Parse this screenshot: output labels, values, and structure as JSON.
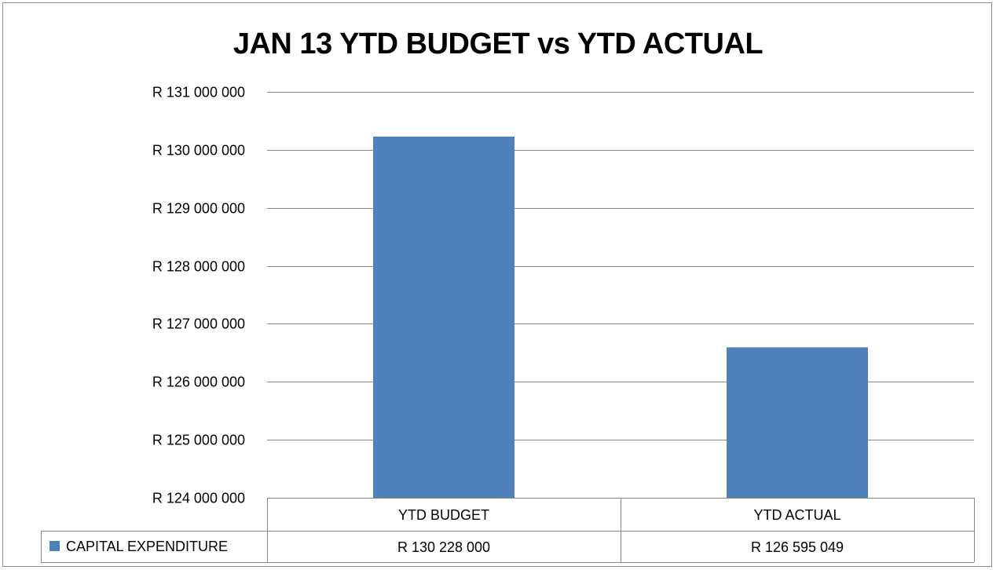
{
  "chart_data": {
    "type": "bar",
    "title": "JAN 13 YTD BUDGET vs YTD ACTUAL",
    "categories": [
      "YTD BUDGET",
      "YTD ACTUAL"
    ],
    "series": [
      {
        "name": "CAPITAL EXPENDITURE",
        "values": [
          130228000,
          126595049
        ],
        "display_values": [
          "R 130 228 000",
          "R 126 595 049"
        ],
        "color": "#4f81bd"
      }
    ],
    "ylim": [
      124000000,
      131000000
    ],
    "yticks": [
      124000000,
      125000000,
      126000000,
      127000000,
      128000000,
      129000000,
      130000000,
      131000000
    ],
    "ytick_labels": [
      "R 124 000 000",
      "R 125 000 000",
      "R 126 000 000",
      "R 127 000 000",
      "R 128 000 000",
      "R 129 000 000",
      "R 130 000 000",
      "R 131 000 000"
    ],
    "xlabel": "",
    "ylabel": "",
    "grid": true,
    "legend": "data-table",
    "gridline_color": "#868686",
    "bar_color": "#4f81bd"
  }
}
